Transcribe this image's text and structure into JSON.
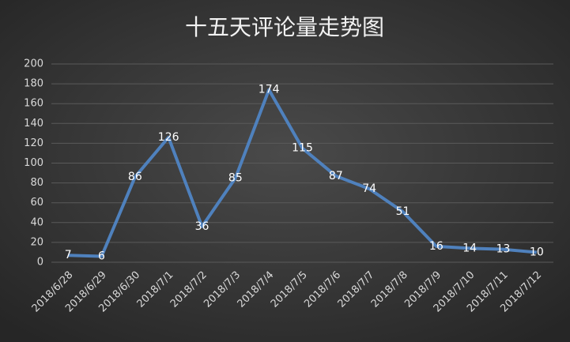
{
  "chart_data": {
    "type": "line",
    "title": "十五天评论量走势图",
    "categories": [
      "2018/6/28",
      "2018/6/29",
      "2018/6/30",
      "2018/7/1",
      "2018/7/2",
      "2018/7/3",
      "2018/7/4",
      "2018/7/5",
      "2018/7/6",
      "2018/7/7",
      "2018/7/8",
      "2018/7/9",
      "2018/7/10",
      "2018/7/11",
      "2018/7/12"
    ],
    "values": [
      7,
      6,
      86,
      126,
      36,
      85,
      174,
      115,
      87,
      74,
      51,
      16,
      14,
      13,
      10
    ],
    "color": "#4f81bd",
    "ylim": [
      0,
      200
    ],
    "yticks": [
      0,
      20,
      40,
      60,
      80,
      100,
      120,
      140,
      160,
      180,
      200
    ],
    "grid": true
  }
}
